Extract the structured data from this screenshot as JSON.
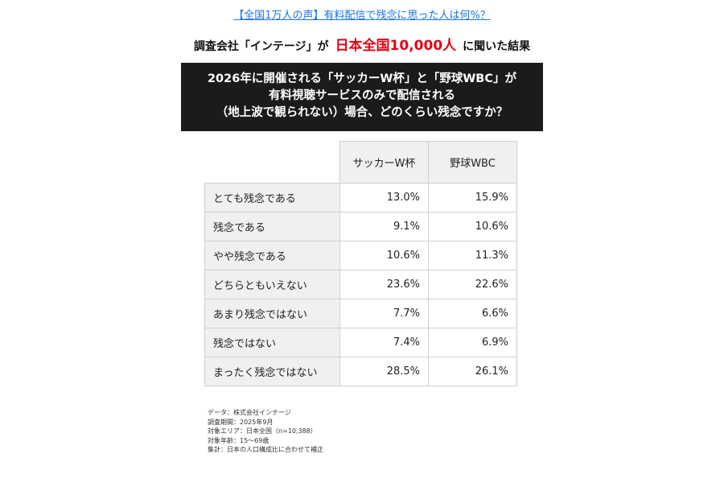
{
  "header": {
    "link_text": "【全国1万人の声】有料配信で残念に思った人は何%？",
    "subtitle_prefix": "調査会社「インテージ」が",
    "subtitle_highlight": "日本全国10,000人",
    "subtitle_suffix": "に聞いた結果",
    "highlight_color": "#e60012"
  },
  "banner": {
    "line1": "2026年に開催される「サッカーW杯」と「野球WBC」が",
    "line2": "有料視聴サービスのみで配信される",
    "line3": "（地上波で観られない）場合、どのくらい残念ですか？"
  },
  "chart_data": {
    "type": "table",
    "columns": [
      "サッカーW杯",
      "野球WBC"
    ],
    "rows": [
      {
        "label": "とても残念である",
        "values": [
          "13.0%",
          "15.9%"
        ]
      },
      {
        "label": "残念である",
        "values": [
          "9.1%",
          "10.6%"
        ]
      },
      {
        "label": "やや残念である",
        "values": [
          "10.6%",
          "11.3%"
        ]
      },
      {
        "label": "どちらともいえない",
        "values": [
          "23.6%",
          "22.6%"
        ]
      },
      {
        "label": "あまり残念ではない",
        "values": [
          "7.7%",
          "6.6%"
        ]
      },
      {
        "label": "残念ではない",
        "values": [
          "7.4%",
          "6.9%"
        ]
      },
      {
        "label": "まったく残念ではない",
        "values": [
          "28.5%",
          "26.1%"
        ]
      }
    ]
  },
  "notes": [
    "データ：株式会社インテージ",
    "調査期間：2025年9月",
    "対象エリア：日本全国（n=10,388）",
    "対象年齢：15～69歳",
    "集計：日本の人口構成比に合わせて補正"
  ]
}
